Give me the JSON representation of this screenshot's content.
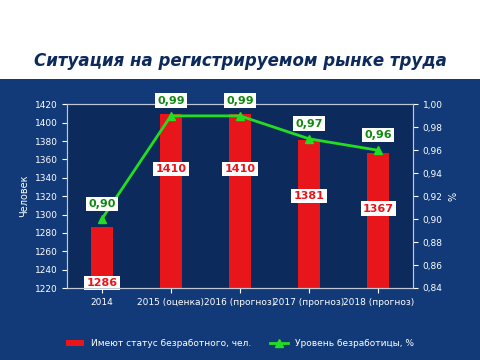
{
  "chart_data": {
    "type": "bar",
    "title": "Ситуация на регистрируемом рынке труда",
    "categories": [
      "2014",
      "2015 (оценка)",
      "2016 (прогноз)",
      "2017 (прогноз)",
      "2018 (прогноз)"
    ],
    "y_label": "Человек",
    "y2_label": "%",
    "ylim": [
      1220,
      1420
    ],
    "yticks": [
      1220,
      1240,
      1260,
      1280,
      1300,
      1320,
      1340,
      1360,
      1380,
      1400,
      1420
    ],
    "y2lim": [
      0.84,
      1.0
    ],
    "y2ticks": [
      {
        "value": 0.84,
        "label": "0,84"
      },
      {
        "value": 0.86,
        "label": "0,86"
      },
      {
        "value": 0.88,
        "label": "0,88"
      },
      {
        "value": 0.9,
        "label": "0,90"
      },
      {
        "value": 0.92,
        "label": "0,92"
      },
      {
        "value": 0.94,
        "label": "0,94"
      },
      {
        "value": 0.96,
        "label": "0,96"
      },
      {
        "value": 0.98,
        "label": "0,98"
      },
      {
        "value": 1.0,
        "label": "1,00"
      }
    ],
    "legend": "lower center",
    "data_labels": true,
    "series": [
      {
        "name": "Имеют статус безработного, чел.",
        "type": "bar",
        "color": "#e8161b",
        "values": [
          1286,
          1410,
          1410,
          1381,
          1367
        ]
      },
      {
        "name": "Уровень безработицы, %",
        "type": "line",
        "axis": "y2",
        "color": "#22dd22",
        "marker": "triangle",
        "line_style": "solid",
        "values": [
          0.9,
          0.99,
          0.99,
          0.97,
          0.96
        ],
        "value_labels": [
          "0,90",
          "0,99",
          "0,99",
          "0,97",
          "0,96"
        ]
      }
    ]
  }
}
